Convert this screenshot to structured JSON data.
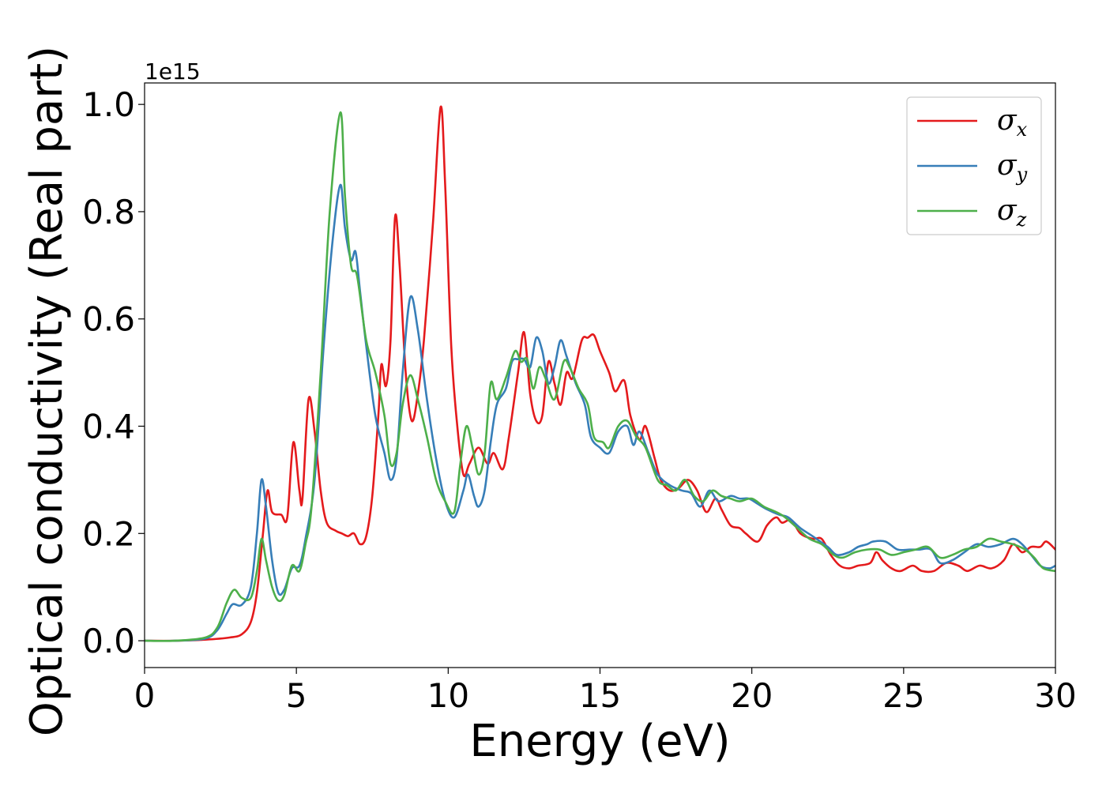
{
  "chart_data": {
    "type": "line",
    "xlabel": "Energy (eV)",
    "ylabel": "Optical conductivity (Real part)",
    "y_offset_label": "1e15",
    "xlim": [
      0,
      30
    ],
    "ylim": [
      -0.05,
      1.04
    ],
    "x_ticks": [
      0,
      5,
      10,
      15,
      20,
      25,
      30
    ],
    "x_tick_labels": [
      "0",
      "5",
      "10",
      "15",
      "20",
      "25",
      "30"
    ],
    "y_ticks": [
      0.0,
      0.2,
      0.4,
      0.6,
      0.8,
      1.0
    ],
    "y_tick_labels": [
      "0.0",
      "0.2",
      "0.4",
      "0.6",
      "0.8",
      "1.0"
    ],
    "grid": false,
    "legend_position": "top-right",
    "series": [
      {
        "name": "σ",
        "subscript": "x",
        "color": "#e41a1c",
        "points": [
          [
            0,
            0
          ],
          [
            1,
            0
          ],
          [
            2,
            0.002
          ],
          [
            2.8,
            0.006
          ],
          [
            3.2,
            0.012
          ],
          [
            3.5,
            0.035
          ],
          [
            3.7,
            0.09
          ],
          [
            3.9,
            0.2
          ],
          [
            4.05,
            0.28
          ],
          [
            4.2,
            0.24
          ],
          [
            4.5,
            0.235
          ],
          [
            4.7,
            0.23
          ],
          [
            4.9,
            0.37
          ],
          [
            5.1,
            0.28
          ],
          [
            5.2,
            0.265
          ],
          [
            5.4,
            0.45
          ],
          [
            5.6,
            0.39
          ],
          [
            5.8,
            0.28
          ],
          [
            6.0,
            0.22
          ],
          [
            6.3,
            0.205
          ],
          [
            6.5,
            0.2
          ],
          [
            6.7,
            0.195
          ],
          [
            6.9,
            0.2
          ],
          [
            7.1,
            0.18
          ],
          [
            7.3,
            0.195
          ],
          [
            7.5,
            0.27
          ],
          [
            7.7,
            0.42
          ],
          [
            7.8,
            0.515
          ],
          [
            7.95,
            0.475
          ],
          [
            8.1,
            0.56
          ],
          [
            8.25,
            0.79
          ],
          [
            8.4,
            0.7
          ],
          [
            8.6,
            0.5
          ],
          [
            8.8,
            0.41
          ],
          [
            9.0,
            0.46
          ],
          [
            9.2,
            0.56
          ],
          [
            9.5,
            0.78
          ],
          [
            9.75,
            0.995
          ],
          [
            9.9,
            0.85
          ],
          [
            10.1,
            0.55
          ],
          [
            10.3,
            0.4
          ],
          [
            10.5,
            0.31
          ],
          [
            10.7,
            0.33
          ],
          [
            11.0,
            0.36
          ],
          [
            11.3,
            0.33
          ],
          [
            11.5,
            0.35
          ],
          [
            11.8,
            0.32
          ],
          [
            12.0,
            0.38
          ],
          [
            12.3,
            0.5
          ],
          [
            12.5,
            0.575
          ],
          [
            12.7,
            0.46
          ],
          [
            12.9,
            0.41
          ],
          [
            13.1,
            0.42
          ],
          [
            13.3,
            0.52
          ],
          [
            13.5,
            0.48
          ],
          [
            13.7,
            0.44
          ],
          [
            13.9,
            0.5
          ],
          [
            14.1,
            0.49
          ],
          [
            14.4,
            0.56
          ],
          [
            14.6,
            0.565
          ],
          [
            14.8,
            0.57
          ],
          [
            15.0,
            0.54
          ],
          [
            15.3,
            0.5
          ],
          [
            15.5,
            0.465
          ],
          [
            15.8,
            0.485
          ],
          [
            16.0,
            0.42
          ],
          [
            16.3,
            0.375
          ],
          [
            16.5,
            0.4
          ],
          [
            16.8,
            0.34
          ],
          [
            17.0,
            0.3
          ],
          [
            17.3,
            0.28
          ],
          [
            17.6,
            0.285
          ],
          [
            17.9,
            0.3
          ],
          [
            18.2,
            0.28
          ],
          [
            18.5,
            0.24
          ],
          [
            18.8,
            0.265
          ],
          [
            19.0,
            0.245
          ],
          [
            19.3,
            0.215
          ],
          [
            19.6,
            0.21
          ],
          [
            19.8,
            0.2
          ],
          [
            20.2,
            0.185
          ],
          [
            20.5,
            0.215
          ],
          [
            20.8,
            0.23
          ],
          [
            21.0,
            0.22
          ],
          [
            21.3,
            0.225
          ],
          [
            21.6,
            0.2
          ],
          [
            22.0,
            0.19
          ],
          [
            22.3,
            0.19
          ],
          [
            22.6,
            0.16
          ],
          [
            22.9,
            0.14
          ],
          [
            23.2,
            0.135
          ],
          [
            23.5,
            0.14
          ],
          [
            23.9,
            0.145
          ],
          [
            24.1,
            0.165
          ],
          [
            24.3,
            0.15
          ],
          [
            24.6,
            0.135
          ],
          [
            24.9,
            0.13
          ],
          [
            25.3,
            0.14
          ],
          [
            25.6,
            0.13
          ],
          [
            26.0,
            0.13
          ],
          [
            26.4,
            0.145
          ],
          [
            26.8,
            0.14
          ],
          [
            27.1,
            0.13
          ],
          [
            27.5,
            0.14
          ],
          [
            27.9,
            0.135
          ],
          [
            28.3,
            0.15
          ],
          [
            28.6,
            0.18
          ],
          [
            28.9,
            0.165
          ],
          [
            29.2,
            0.175
          ],
          [
            29.5,
            0.175
          ],
          [
            29.7,
            0.185
          ],
          [
            30.0,
            0.17
          ]
        ]
      },
      {
        "name": "σ",
        "subscript": "y",
        "color": "#377eb8",
        "points": [
          [
            0,
            0
          ],
          [
            1,
            0
          ],
          [
            2,
            0.004
          ],
          [
            2.4,
            0.02
          ],
          [
            2.7,
            0.05
          ],
          [
            2.9,
            0.068
          ],
          [
            3.2,
            0.067
          ],
          [
            3.5,
            0.1
          ],
          [
            3.7,
            0.2
          ],
          [
            3.85,
            0.3
          ],
          [
            4.0,
            0.25
          ],
          [
            4.2,
            0.15
          ],
          [
            4.4,
            0.09
          ],
          [
            4.6,
            0.095
          ],
          [
            4.85,
            0.135
          ],
          [
            5.1,
            0.14
          ],
          [
            5.3,
            0.19
          ],
          [
            5.6,
            0.3
          ],
          [
            5.9,
            0.55
          ],
          [
            6.2,
            0.75
          ],
          [
            6.45,
            0.85
          ],
          [
            6.6,
            0.77
          ],
          [
            6.8,
            0.71
          ],
          [
            6.95,
            0.725
          ],
          [
            7.1,
            0.65
          ],
          [
            7.3,
            0.55
          ],
          [
            7.6,
            0.42
          ],
          [
            7.9,
            0.35
          ],
          [
            8.1,
            0.3
          ],
          [
            8.3,
            0.34
          ],
          [
            8.5,
            0.5
          ],
          [
            8.75,
            0.64
          ],
          [
            9.0,
            0.58
          ],
          [
            9.3,
            0.45
          ],
          [
            9.6,
            0.34
          ],
          [
            9.9,
            0.26
          ],
          [
            10.2,
            0.23
          ],
          [
            10.5,
            0.28
          ],
          [
            10.65,
            0.31
          ],
          [
            10.85,
            0.27
          ],
          [
            11.0,
            0.25
          ],
          [
            11.2,
            0.28
          ],
          [
            11.4,
            0.37
          ],
          [
            11.6,
            0.44
          ],
          [
            11.9,
            0.47
          ],
          [
            12.1,
            0.52
          ],
          [
            12.3,
            0.525
          ],
          [
            12.5,
            0.525
          ],
          [
            12.7,
            0.51
          ],
          [
            12.9,
            0.565
          ],
          [
            13.1,
            0.54
          ],
          [
            13.3,
            0.48
          ],
          [
            13.5,
            0.51
          ],
          [
            13.7,
            0.56
          ],
          [
            13.9,
            0.53
          ],
          [
            14.2,
            0.48
          ],
          [
            14.5,
            0.44
          ],
          [
            14.7,
            0.38
          ],
          [
            15.0,
            0.36
          ],
          [
            15.3,
            0.35
          ],
          [
            15.6,
            0.39
          ],
          [
            15.9,
            0.4
          ],
          [
            16.1,
            0.365
          ],
          [
            16.3,
            0.39
          ],
          [
            16.6,
            0.35
          ],
          [
            16.9,
            0.31
          ],
          [
            17.3,
            0.29
          ],
          [
            17.7,
            0.28
          ],
          [
            18.0,
            0.275
          ],
          [
            18.3,
            0.25
          ],
          [
            18.6,
            0.28
          ],
          [
            18.9,
            0.26
          ],
          [
            19.3,
            0.27
          ],
          [
            19.6,
            0.265
          ],
          [
            19.9,
            0.265
          ],
          [
            20.2,
            0.255
          ],
          [
            20.5,
            0.245
          ],
          [
            20.9,
            0.235
          ],
          [
            21.2,
            0.23
          ],
          [
            21.6,
            0.21
          ],
          [
            22.0,
            0.195
          ],
          [
            22.5,
            0.175
          ],
          [
            22.8,
            0.16
          ],
          [
            23.2,
            0.165
          ],
          [
            23.5,
            0.175
          ],
          [
            23.8,
            0.18
          ],
          [
            24.0,
            0.185
          ],
          [
            24.4,
            0.185
          ],
          [
            24.8,
            0.17
          ],
          [
            25.2,
            0.17
          ],
          [
            25.5,
            0.17
          ],
          [
            25.9,
            0.17
          ],
          [
            26.2,
            0.145
          ],
          [
            26.6,
            0.15
          ],
          [
            27.0,
            0.165
          ],
          [
            27.4,
            0.18
          ],
          [
            27.8,
            0.175
          ],
          [
            28.2,
            0.18
          ],
          [
            28.6,
            0.19
          ],
          [
            28.9,
            0.18
          ],
          [
            29.2,
            0.16
          ],
          [
            29.5,
            0.14
          ],
          [
            29.8,
            0.135
          ],
          [
            30.0,
            0.14
          ]
        ]
      },
      {
        "name": "σ",
        "subscript": "z",
        "color": "#4daf4a",
        "points": [
          [
            0,
            0
          ],
          [
            1,
            0
          ],
          [
            2,
            0.006
          ],
          [
            2.4,
            0.025
          ],
          [
            2.7,
            0.07
          ],
          [
            2.95,
            0.095
          ],
          [
            3.2,
            0.08
          ],
          [
            3.5,
            0.08
          ],
          [
            3.7,
            0.13
          ],
          [
            3.85,
            0.19
          ],
          [
            4.0,
            0.15
          ],
          [
            4.2,
            0.1
          ],
          [
            4.4,
            0.075
          ],
          [
            4.6,
            0.085
          ],
          [
            4.85,
            0.14
          ],
          [
            5.1,
            0.13
          ],
          [
            5.3,
            0.18
          ],
          [
            5.5,
            0.25
          ],
          [
            5.8,
            0.5
          ],
          [
            6.1,
            0.8
          ],
          [
            6.45,
            0.985
          ],
          [
            6.6,
            0.83
          ],
          [
            6.8,
            0.7
          ],
          [
            7.0,
            0.68
          ],
          [
            7.3,
            0.56
          ],
          [
            7.6,
            0.5
          ],
          [
            7.9,
            0.42
          ],
          [
            8.1,
            0.33
          ],
          [
            8.3,
            0.35
          ],
          [
            8.5,
            0.44
          ],
          [
            8.75,
            0.495
          ],
          [
            9.0,
            0.45
          ],
          [
            9.3,
            0.38
          ],
          [
            9.6,
            0.3
          ],
          [
            9.9,
            0.26
          ],
          [
            10.2,
            0.24
          ],
          [
            10.4,
            0.33
          ],
          [
            10.6,
            0.4
          ],
          [
            10.8,
            0.36
          ],
          [
            11.0,
            0.31
          ],
          [
            11.2,
            0.35
          ],
          [
            11.4,
            0.48
          ],
          [
            11.6,
            0.45
          ],
          [
            11.9,
            0.49
          ],
          [
            12.2,
            0.54
          ],
          [
            12.4,
            0.52
          ],
          [
            12.6,
            0.525
          ],
          [
            12.8,
            0.47
          ],
          [
            13.0,
            0.51
          ],
          [
            13.2,
            0.49
          ],
          [
            13.5,
            0.45
          ],
          [
            13.8,
            0.52
          ],
          [
            14.0,
            0.51
          ],
          [
            14.3,
            0.47
          ],
          [
            14.6,
            0.44
          ],
          [
            14.8,
            0.38
          ],
          [
            15.1,
            0.37
          ],
          [
            15.3,
            0.36
          ],
          [
            15.6,
            0.4
          ],
          [
            15.9,
            0.41
          ],
          [
            16.2,
            0.38
          ],
          [
            16.5,
            0.36
          ],
          [
            16.9,
            0.3
          ],
          [
            17.2,
            0.29
          ],
          [
            17.5,
            0.28
          ],
          [
            17.8,
            0.3
          ],
          [
            18.1,
            0.27
          ],
          [
            18.4,
            0.26
          ],
          [
            18.7,
            0.28
          ],
          [
            19.0,
            0.27
          ],
          [
            19.3,
            0.265
          ],
          [
            19.6,
            0.26
          ],
          [
            20.0,
            0.265
          ],
          [
            20.4,
            0.25
          ],
          [
            20.8,
            0.24
          ],
          [
            21.1,
            0.23
          ],
          [
            21.5,
            0.21
          ],
          [
            21.9,
            0.19
          ],
          [
            22.3,
            0.18
          ],
          [
            22.7,
            0.16
          ],
          [
            23.0,
            0.155
          ],
          [
            23.4,
            0.165
          ],
          [
            23.8,
            0.17
          ],
          [
            24.2,
            0.17
          ],
          [
            24.6,
            0.16
          ],
          [
            25.0,
            0.165
          ],
          [
            25.4,
            0.17
          ],
          [
            25.8,
            0.175
          ],
          [
            26.2,
            0.155
          ],
          [
            26.6,
            0.16
          ],
          [
            27.0,
            0.17
          ],
          [
            27.4,
            0.175
          ],
          [
            27.8,
            0.19
          ],
          [
            28.2,
            0.185
          ],
          [
            28.6,
            0.18
          ],
          [
            29.0,
            0.17
          ],
          [
            29.3,
            0.155
          ],
          [
            29.6,
            0.135
          ],
          [
            30.0,
            0.13
          ]
        ]
      }
    ]
  }
}
